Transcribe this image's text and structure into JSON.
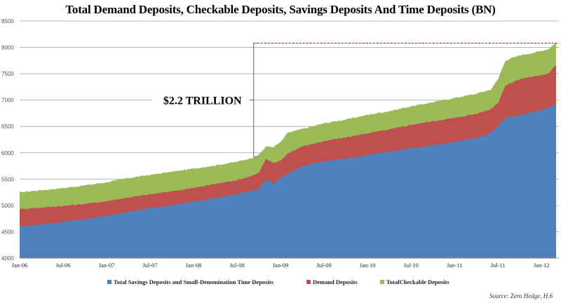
{
  "chart_data": {
    "type": "area",
    "stacked": false,
    "title": "Total Demand Deposits, Checkable Deposits, Savings Deposits And Time Deposits (BN)",
    "xlabel": "",
    "ylabel": "",
    "ylim": [
      4000,
      8500
    ],
    "yticks": [
      4000,
      4500,
      5000,
      5500,
      6000,
      6500,
      7000,
      7500,
      8000,
      8500
    ],
    "xtick_labels": [
      "Jan-06",
      "Jul-06",
      "Jan-07",
      "Jul-07",
      "Jan-08",
      "Jul-08",
      "Jan-09",
      "Jul-09",
      "Jan-10",
      "Jul-10",
      "Jan-11",
      "Jul-11",
      "Jan-12"
    ],
    "x_start": "Jan-06",
    "x_end": "Feb-12",
    "months_count": 75,
    "grid": true,
    "legend_position": "bottom",
    "series": [
      {
        "name": "TotalCheckable Deposits",
        "color": "#9BBB59",
        "anchors": [
          [
            0,
            5250
          ],
          [
            3,
            5290
          ],
          [
            6,
            5330
          ],
          [
            9,
            5380
          ],
          [
            12,
            5440
          ],
          [
            15,
            5520
          ],
          [
            18,
            5580
          ],
          [
            21,
            5640
          ],
          [
            24,
            5700
          ],
          [
            27,
            5760
          ],
          [
            30,
            5830
          ],
          [
            32,
            5900
          ],
          [
            33,
            5960
          ],
          [
            34,
            6120
          ],
          [
            35,
            6110
          ],
          [
            36,
            6200
          ],
          [
            37,
            6380
          ],
          [
            39,
            6450
          ],
          [
            42,
            6560
          ],
          [
            45,
            6630
          ],
          [
            48,
            6720
          ],
          [
            51,
            6790
          ],
          [
            54,
            6880
          ],
          [
            57,
            6960
          ],
          [
            60,
            7040
          ],
          [
            63,
            7120
          ],
          [
            64,
            7160
          ],
          [
            65,
            7200
          ],
          [
            66,
            7400
          ],
          [
            67,
            7750
          ],
          [
            69,
            7850
          ],
          [
            71,
            7900
          ],
          [
            73,
            7970
          ],
          [
            74,
            8100
          ]
        ]
      },
      {
        "name": "Demand Deposits",
        "color": "#C0504D",
        "anchors": [
          [
            0,
            4930
          ],
          [
            3,
            4960
          ],
          [
            6,
            4990
          ],
          [
            9,
            5030
          ],
          [
            12,
            5080
          ],
          [
            15,
            5150
          ],
          [
            18,
            5210
          ],
          [
            21,
            5270
          ],
          [
            24,
            5330
          ],
          [
            27,
            5410
          ],
          [
            30,
            5480
          ],
          [
            32,
            5560
          ],
          [
            33,
            5620
          ],
          [
            34,
            5880
          ],
          [
            35,
            5800
          ],
          [
            36,
            5850
          ],
          [
            37,
            5990
          ],
          [
            39,
            6120
          ],
          [
            42,
            6220
          ],
          [
            45,
            6290
          ],
          [
            48,
            6370
          ],
          [
            51,
            6440
          ],
          [
            54,
            6530
          ],
          [
            57,
            6600
          ],
          [
            60,
            6660
          ],
          [
            63,
            6740
          ],
          [
            64,
            6780
          ],
          [
            65,
            6830
          ],
          [
            66,
            6950
          ],
          [
            67,
            7270
          ],
          [
            69,
            7400
          ],
          [
            71,
            7450
          ],
          [
            73,
            7500
          ],
          [
            74,
            7670
          ]
        ]
      },
      {
        "name": "Total Savings Deposits and Small-Denomination Time Deposits",
        "color": "#4F81BD",
        "anchors": [
          [
            0,
            4600
          ],
          [
            3,
            4640
          ],
          [
            6,
            4690
          ],
          [
            9,
            4740
          ],
          [
            12,
            4800
          ],
          [
            15,
            4880
          ],
          [
            18,
            4950
          ],
          [
            21,
            5010
          ],
          [
            24,
            5070
          ],
          [
            27,
            5140
          ],
          [
            30,
            5220
          ],
          [
            32,
            5280
          ],
          [
            33,
            5310
          ],
          [
            34,
            5500
          ],
          [
            35,
            5420
          ],
          [
            36,
            5520
          ],
          [
            37,
            5600
          ],
          [
            39,
            5750
          ],
          [
            42,
            5840
          ],
          [
            45,
            5880
          ],
          [
            48,
            5960
          ],
          [
            51,
            6020
          ],
          [
            54,
            6090
          ],
          [
            57,
            6140
          ],
          [
            60,
            6210
          ],
          [
            63,
            6280
          ],
          [
            64,
            6320
          ],
          [
            65,
            6380
          ],
          [
            66,
            6500
          ],
          [
            67,
            6660
          ],
          [
            69,
            6720
          ],
          [
            71,
            6780
          ],
          [
            73,
            6860
          ],
          [
            74,
            6910
          ]
        ]
      }
    ],
    "annotations": {
      "bracket_label": "$2.2 TRILLION",
      "bracket_from_value": 5920,
      "bracket_to_value": 8080,
      "bracket_at_month": 32,
      "reference_line_value": 8080,
      "reference_line_color": "#FF0000"
    },
    "source": "Source: Zero Hedge, H.6"
  },
  "legend": [
    {
      "label": "Total Savings Deposits and Small-Denomination Time Deposits",
      "color": "#4F81BD"
    },
    {
      "label": "Demand Deposits",
      "color": "#C0504D"
    },
    {
      "label": "TotalCheckable Deposits",
      "color": "#9BBB59"
    }
  ]
}
